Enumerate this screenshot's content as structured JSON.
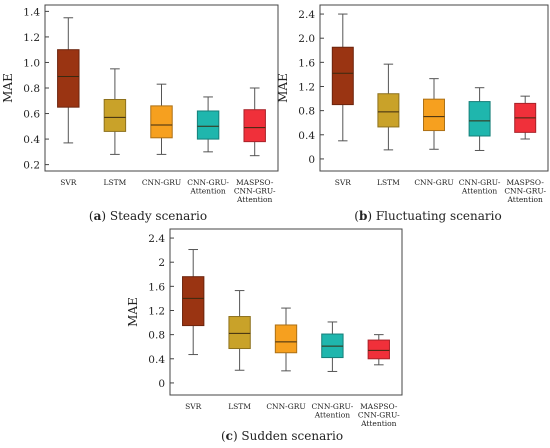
{
  "chart_data": [
    {
      "type": "box",
      "caption_letter": "a",
      "caption_text": "Steady scenario",
      "ylabel": "MAE",
      "ylim": [
        0.15,
        1.45
      ],
      "yticks": [
        "0.2",
        "0.4",
        "0.6",
        "0.8",
        "1.0",
        "1.2",
        "1.4"
      ],
      "categories": [
        "SVR",
        "LSTM",
        "CNN-GRU",
        "CNN-GRU-Attention",
        "MASPSO-CNN-GRU-Attention"
      ],
      "boxes": [
        {
          "min": 0.37,
          "q1": 0.65,
          "median": 0.89,
          "q3": 1.1,
          "max": 1.35
        },
        {
          "min": 0.28,
          "q1": 0.46,
          "median": 0.57,
          "q3": 0.71,
          "max": 0.95
        },
        {
          "min": 0.28,
          "q1": 0.41,
          "median": 0.51,
          "q3": 0.66,
          "max": 0.83
        },
        {
          "min": 0.3,
          "q1": 0.4,
          "median": 0.5,
          "q3": 0.62,
          "max": 0.73
        },
        {
          "min": 0.27,
          "q1": 0.38,
          "median": 0.49,
          "q3": 0.63,
          "max": 0.8
        }
      ]
    },
    {
      "type": "box",
      "caption_letter": "b",
      "caption_text": "Fluctuating scenario",
      "ylabel": "MAE",
      "ylim": [
        -0.2,
        2.55
      ],
      "yticks": [
        "0",
        "0.4",
        "0.8",
        "1.2",
        "1.6",
        "2.0",
        "2.4"
      ],
      "categories": [
        "SVR",
        "LSTM",
        "CNN-GRU",
        "CNN-GRU-Attention",
        "MASPSO-CNN-GRU-Attention"
      ],
      "boxes": [
        {
          "min": 0.3,
          "q1": 0.9,
          "median": 1.42,
          "q3": 1.85,
          "max": 2.4
        },
        {
          "min": 0.15,
          "q1": 0.53,
          "median": 0.78,
          "q3": 1.08,
          "max": 1.57
        },
        {
          "min": 0.16,
          "q1": 0.47,
          "median": 0.7,
          "q3": 0.99,
          "max": 1.33
        },
        {
          "min": 0.14,
          "q1": 0.38,
          "median": 0.63,
          "q3": 0.95,
          "max": 1.18
        },
        {
          "min": 0.33,
          "q1": 0.44,
          "median": 0.68,
          "q3": 0.92,
          "max": 1.04
        }
      ]
    },
    {
      "type": "box",
      "caption_letter": "c",
      "caption_text": "Sudden scenario",
      "ylabel": "MAE",
      "ylim": [
        -0.2,
        2.55
      ],
      "yticks": [
        "0",
        "0.4",
        "0.8",
        "1.2",
        "1.6",
        "2",
        "2.4"
      ],
      "categories": [
        "SVR",
        "LSTM",
        "CNN-GRU",
        "CNN-GRU-Attention",
        "MASPSO-CNN-GRU-Attention"
      ],
      "boxes": [
        {
          "min": 0.47,
          "q1": 0.95,
          "median": 1.4,
          "q3": 1.76,
          "max": 2.21
        },
        {
          "min": 0.21,
          "q1": 0.57,
          "median": 0.82,
          "q3": 1.1,
          "max": 1.53
        },
        {
          "min": 0.2,
          "q1": 0.5,
          "median": 0.68,
          "q3": 0.96,
          "max": 1.24
        },
        {
          "min": 0.19,
          "q1": 0.42,
          "median": 0.61,
          "q3": 0.81,
          "max": 1.01
        },
        {
          "min": 0.3,
          "q1": 0.4,
          "median": 0.54,
          "q3": 0.71,
          "max": 0.8
        }
      ]
    }
  ],
  "colors": [
    "#9a3412",
    "#c9a229",
    "#f6a01f",
    "#1fb6ad",
    "#f0303a"
  ]
}
